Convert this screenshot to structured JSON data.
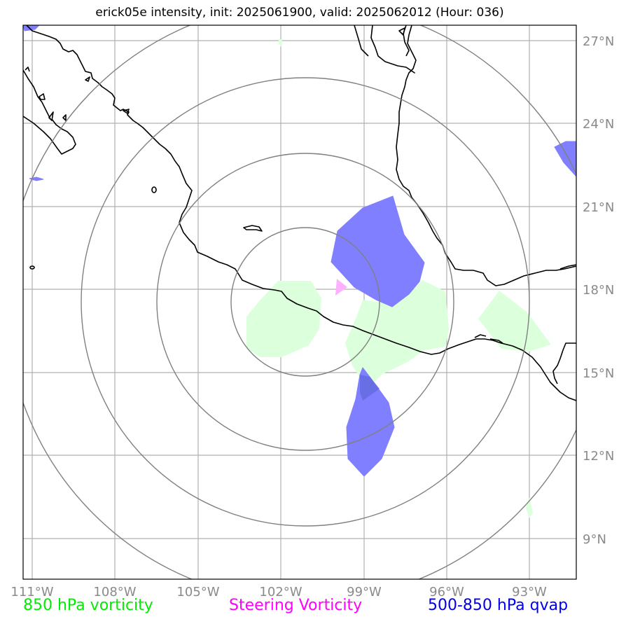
{
  "title": "erick05e intensity, init: 2025061900, valid: 2025062012 (Hour: 036)",
  "longitude_ticks": [
    "111°W",
    "108°W",
    "105°W",
    "102°W",
    "99°W",
    "96°W",
    "93°W"
  ],
  "latitude_ticks": [
    "27°N",
    "24°N",
    "21°N",
    "18°N",
    "15°N",
    "12°N",
    "9°N"
  ],
  "legend": {
    "vorticity": "850 hPa vorticity",
    "steering": "Steering Vorticity",
    "qvap": "500-850 hPa qvap"
  },
  "colors": {
    "vorticity_text": "#00ee00",
    "vorticity_fill": "#dcffdc",
    "steering_text": "#ff00ff",
    "steering_fill": "#ffb0ff",
    "qvap_text": "#0000ee",
    "qvap_fill": "#7f7fff",
    "range_rings": "#808080",
    "gridlines": "#b0b0b0",
    "coastline": "#000000"
  },
  "storm_center": {
    "lon": -100.9,
    "lat": 17.6
  },
  "map_extent": {
    "lon": [
      -111.3,
      -91.3
    ],
    "lat": [
      7.5,
      27.5
    ]
  }
}
